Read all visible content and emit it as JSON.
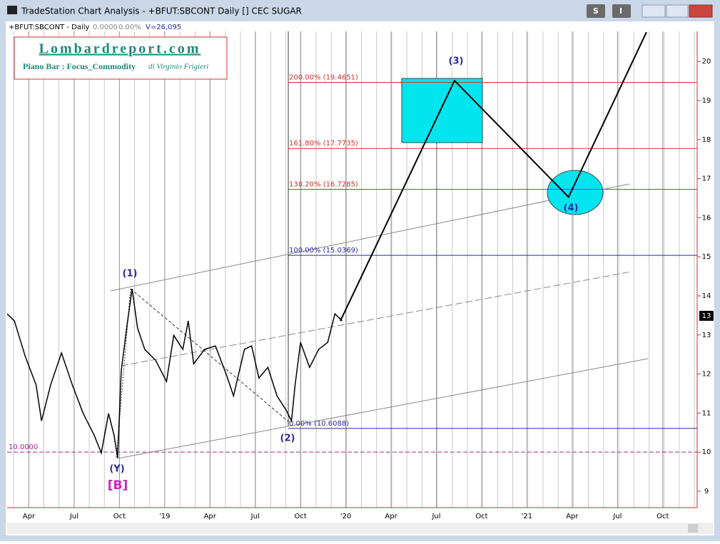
{
  "window": {
    "title": "TradeStation Chart Analysis - +BFUT:SBCONT Daily [] CEC SUGAR",
    "buttons": [
      "S",
      "I"
    ]
  },
  "header": {
    "symbol": "+BFUT:SBCONT - Daily",
    "change": "0.0000",
    "change_pct": "0.00%",
    "volume": "V=26,095"
  },
  "logo": {
    "site": "Lombardreport.com",
    "subtitle": "Piano Bar : Focus_Commodity",
    "author": "di Virginio Frigieri"
  },
  "chart_data": {
    "type": "line",
    "x": [
      2018.13,
      2018.17,
      2018.23,
      2018.29,
      2018.32,
      2018.37,
      2018.43,
      2018.49,
      2018.55,
      2018.61,
      2018.65,
      2018.69,
      2018.72,
      2018.74,
      2018.76,
      2018.79,
      2018.82,
      2018.85,
      2018.89,
      2018.95,
      2019.01,
      2019.05,
      2019.1,
      2019.13,
      2019.16,
      2019.22,
      2019.28,
      2019.34,
      2019.38,
      2019.44,
      2019.48,
      2019.52,
      2019.57,
      2019.62,
      2019.67,
      2019.7,
      2019.72,
      2019.75,
      2019.8,
      2019.85,
      2019.9,
      2019.94,
      2019.98
    ],
    "series": [
      {
        "name": "+BFUT:SBCONT",
        "color": "#000000",
        "values": [
          13.54,
          13.36,
          12.45,
          11.72,
          10.8,
          11.72,
          12.54,
          11.72,
          10.99,
          10.44,
          9.98,
          10.99,
          10.44,
          9.85,
          12.08,
          13.18,
          14.18,
          13.18,
          12.63,
          12.35,
          11.81,
          12.99,
          12.63,
          13.36,
          12.26,
          12.63,
          12.72,
          11.99,
          11.44,
          12.63,
          12.72,
          11.9,
          12.17,
          11.44,
          11.08,
          10.8,
          11.72,
          12.81,
          12.17,
          12.63,
          12.81,
          13.54,
          13.36
        ]
      }
    ],
    "projection": {
      "color": "#000000",
      "x": [
        2019.97,
        2020.6,
        2021.23,
        2021.66
      ],
      "values": [
        13.36,
        19.51,
        16.53,
        20.75
      ]
    },
    "levels": [
      {
        "label": "200.00% (19.4651)",
        "value": 19.4651,
        "color": "#d03030"
      },
      {
        "label": "161.80% (17.7735)",
        "value": 17.7735,
        "color": "#d03030"
      },
      {
        "label": "138.20% (16.7285)",
        "value": 16.7285,
        "color": "#d03030"
      },
      {
        "label": "100.00% (15.0369)",
        "value": 15.0369,
        "color": "#2a2a9a"
      },
      {
        "label": "0.00% (10.6088)",
        "value": 10.6088,
        "color": "#2a2a9a"
      }
    ],
    "support": {
      "label": "10.0000",
      "value": 10,
      "color": "#9a2a9a"
    },
    "last_price": {
      "value": 13.49,
      "label": "13"
    },
    "annotations": [
      "(1)",
      "(Y)",
      "[B]",
      "(2)",
      "(3)",
      "(4)"
    ],
    "xlim": [
      2018.13,
      2021.94
    ],
    "ylim": [
      8.58,
      20.77
    ],
    "xticks": [
      {
        "value": 2018.25,
        "label": "Apr"
      },
      {
        "value": 2018.5,
        "label": "Jul"
      },
      {
        "value": 2018.75,
        "label": "Oct"
      },
      {
        "value": 2019.0,
        "label": "'19"
      },
      {
        "value": 2019.25,
        "label": "Apr"
      },
      {
        "value": 2019.5,
        "label": "Jul"
      },
      {
        "value": 2019.75,
        "label": "Oct"
      },
      {
        "value": 2020.0,
        "label": "'20"
      },
      {
        "value": 2020.25,
        "label": "Apr"
      },
      {
        "value": 2020.5,
        "label": "Jul"
      },
      {
        "value": 2020.75,
        "label": "Oct"
      },
      {
        "value": 2021.0,
        "label": "'21"
      },
      {
        "value": 2021.25,
        "label": "Apr"
      },
      {
        "value": 2021.5,
        "label": "Jul"
      },
      {
        "value": 2021.75,
        "label": "Oct"
      }
    ],
    "yticks": [
      9,
      10,
      11,
      12,
      13,
      14,
      15,
      16,
      17,
      18,
      19,
      20
    ],
    "grid": true
  }
}
